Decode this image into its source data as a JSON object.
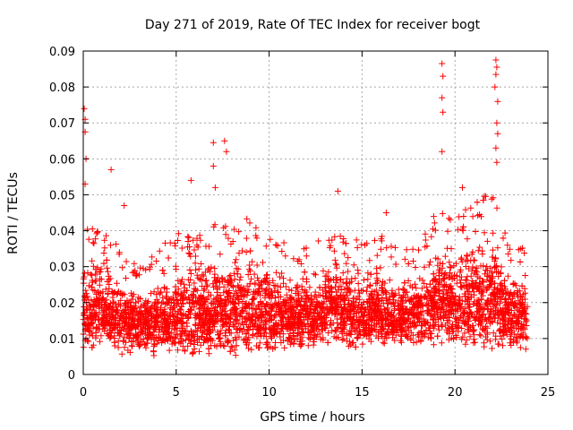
{
  "chart_data": {
    "type": "scatter",
    "title": "Day 271 of 2019, Rate Of TEC Index for receiver bogt",
    "xlabel": "GPS time / hours",
    "ylabel": "ROTI / TECUs",
    "xlim": [
      0,
      25
    ],
    "ylim": [
      0,
      0.09
    ],
    "xticks": [
      0,
      5,
      10,
      15,
      20,
      25
    ],
    "yticks": [
      0,
      0.01,
      0.02,
      0.03,
      0.04,
      0.05,
      0.06,
      0.07,
      0.08,
      0.09
    ],
    "xtick_labels": [
      "0",
      "5",
      "10",
      "15",
      "20",
      "25"
    ],
    "ytick_labels": [
      "0",
      "0.01",
      "0.02",
      "0.03",
      "0.04",
      "0.05",
      "0.06",
      "0.07",
      "0.08",
      "0.09"
    ],
    "grid": true,
    "marker": "+",
    "color": "#ff0000",
    "series": [
      {
        "name": "ROTI",
        "notable_points": [
          {
            "x": 0.05,
            "y": 0.074
          },
          {
            "x": 0.1,
            "y": 0.071
          },
          {
            "x": 0.1,
            "y": 0.0675
          },
          {
            "x": 0.15,
            "y": 0.06
          },
          {
            "x": 0.1,
            "y": 0.053
          },
          {
            "x": 1.5,
            "y": 0.057
          },
          {
            "x": 2.2,
            "y": 0.047
          },
          {
            "x": 5.8,
            "y": 0.054
          },
          {
            "x": 7.0,
            "y": 0.0645
          },
          {
            "x": 7.0,
            "y": 0.058
          },
          {
            "x": 7.6,
            "y": 0.065
          },
          {
            "x": 7.7,
            "y": 0.062
          },
          {
            "x": 7.1,
            "y": 0.052
          },
          {
            "x": 13.7,
            "y": 0.051
          },
          {
            "x": 16.3,
            "y": 0.045
          },
          {
            "x": 19.3,
            "y": 0.0865
          },
          {
            "x": 19.35,
            "y": 0.083
          },
          {
            "x": 19.3,
            "y": 0.077
          },
          {
            "x": 19.35,
            "y": 0.073
          },
          {
            "x": 19.3,
            "y": 0.062
          },
          {
            "x": 20.4,
            "y": 0.052
          },
          {
            "x": 22.2,
            "y": 0.0875
          },
          {
            "x": 22.25,
            "y": 0.0855
          },
          {
            "x": 22.2,
            "y": 0.0835
          },
          {
            "x": 22.15,
            "y": 0.08
          },
          {
            "x": 22.3,
            "y": 0.076
          },
          {
            "x": 22.25,
            "y": 0.07
          },
          {
            "x": 22.3,
            "y": 0.067
          },
          {
            "x": 22.2,
            "y": 0.063
          },
          {
            "x": 22.25,
            "y": 0.059
          }
        ],
        "envelope_hours": [
          0,
          1,
          2,
          3,
          4,
          5,
          6,
          7,
          8,
          9,
          10,
          11,
          12,
          13,
          14,
          15,
          16,
          17,
          18,
          19,
          20,
          21,
          22,
          23,
          23.9
        ],
        "envelope_upper": [
          0.035,
          0.035,
          0.029,
          0.027,
          0.03,
          0.034,
          0.032,
          0.036,
          0.035,
          0.038,
          0.034,
          0.032,
          0.03,
          0.033,
          0.036,
          0.03,
          0.033,
          0.029,
          0.029,
          0.04,
          0.038,
          0.042,
          0.045,
          0.03,
          0.031
        ],
        "envelope_lower": [
          0.007,
          0.007,
          0.005,
          0.005,
          0.005,
          0.004,
          0.004,
          0.005,
          0.005,
          0.005,
          0.005,
          0.006,
          0.006,
          0.007,
          0.007,
          0.007,
          0.007,
          0.007,
          0.007,
          0.007,
          0.006,
          0.006,
          0.006,
          0.006,
          0.006
        ]
      }
    ]
  }
}
